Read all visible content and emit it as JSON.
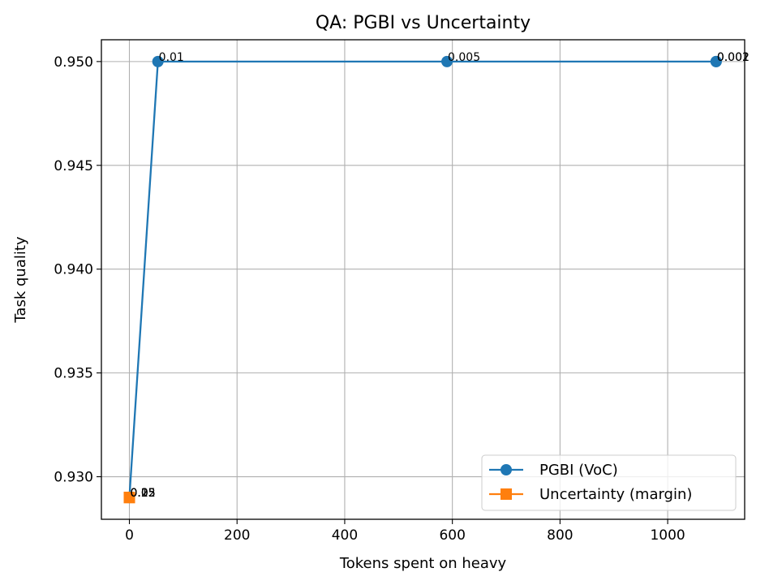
{
  "chart_data": {
    "type": "line",
    "title": "QA: PGBI vs Uncertainty",
    "xlabel": "Tokens spent on heavy",
    "ylabel": "Task quality",
    "xlim": [
      -52,
      1143
    ],
    "ylim": [
      0.92795,
      0.95105
    ],
    "xticks": [
      0,
      200,
      400,
      600,
      800,
      1000
    ],
    "xtick_labels": [
      "0",
      "200",
      "400",
      "600",
      "800",
      "1000"
    ],
    "yticks": [
      0.93,
      0.935,
      0.94,
      0.945,
      0.95
    ],
    "ytick_labels": [
      "0.930",
      "0.935",
      "0.940",
      "0.945",
      "0.950"
    ],
    "grid": true,
    "legend": "bottom-right",
    "series": [
      {
        "name": "PGBI (VoC)",
        "color": "#1f77b4",
        "marker": "circle",
        "points": [
          {
            "x": 0,
            "y": 0.929,
            "label": "0.02"
          },
          {
            "x": 53,
            "y": 0.95,
            "label": "0.01"
          },
          {
            "x": 590,
            "y": 0.95,
            "label": "0.005"
          },
          {
            "x": 1090,
            "y": 0.95,
            "label": "0.002"
          },
          {
            "x": 1090,
            "y": 0.95,
            "label": "0.001"
          }
        ]
      },
      {
        "name": "Uncertainty (margin)",
        "color": "#ff7f0e",
        "marker": "square",
        "points": [
          {
            "x": 0,
            "y": 0.929,
            "label": "0.05"
          },
          {
            "x": 0,
            "y": 0.929,
            "label": "0.15"
          },
          {
            "x": 0,
            "y": 0.929,
            "label": "0.25"
          }
        ]
      }
    ]
  }
}
